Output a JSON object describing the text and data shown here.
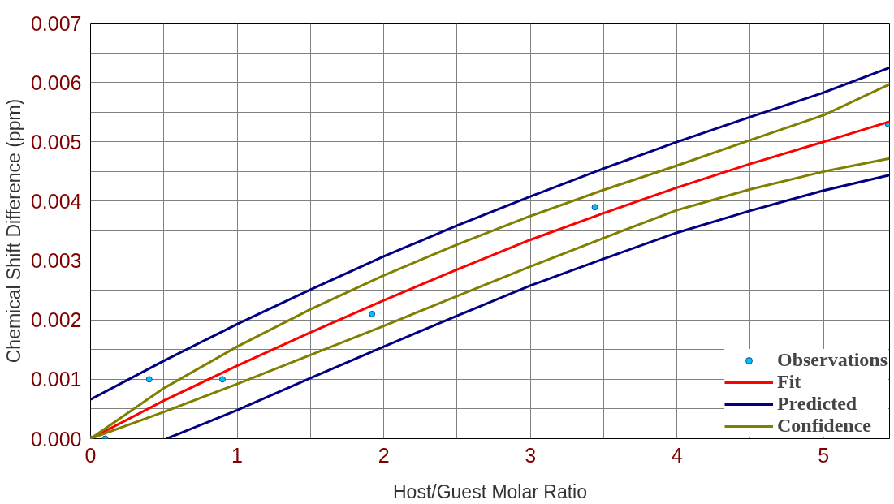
{
  "chart_data": {
    "type": "line",
    "xlabel": "Host/Guest Molar Ratio",
    "ylabel": "Chemical Shift Difference (ppm)",
    "xlim": [
      0,
      5.45
    ],
    "ylim": [
      0,
      0.007
    ],
    "xticks": [
      0,
      {
        "value": 0.5,
        "label": null
      },
      1,
      {
        "value": 1.5,
        "label": null
      },
      2,
      {
        "value": 2.5,
        "label": null
      },
      3,
      {
        "value": 3.5,
        "label": null
      },
      4,
      {
        "value": 4.5,
        "label": null
      },
      5
    ],
    "yticks": [
      {
        "value": 0,
        "label": "0.000"
      },
      {
        "value": 0.0005,
        "label": null
      },
      {
        "value": 0.001,
        "label": "0.001"
      },
      {
        "value": 0.0015,
        "label": null
      },
      {
        "value": 0.002,
        "label": "0.002"
      },
      {
        "value": 0.0025,
        "label": null
      },
      {
        "value": 0.003,
        "label": "0.003"
      },
      {
        "value": 0.0035,
        "label": null
      },
      {
        "value": 0.004,
        "label": "0.004"
      },
      {
        "value": 0.0045,
        "label": null
      },
      {
        "value": 0.005,
        "label": "0.005"
      },
      {
        "value": 0.0055,
        "label": null
      },
      {
        "value": 0.006,
        "label": "0.006"
      },
      {
        "value": 0.0065,
        "label": null
      },
      {
        "value": 0.007,
        "label": "0.007"
      }
    ],
    "grid": true,
    "legend": "bottom right",
    "series": [
      {
        "name": "Observations",
        "type": "scatter",
        "marker": "circle",
        "color": "#00bfff",
        "x": [
          0,
          0.1,
          0.4,
          0.9,
          1.92,
          3.44,
          5.44
        ],
        "values": [
          0,
          0,
          0.001,
          0.001,
          0.0021,
          0.0039,
          0.0053
        ]
      },
      {
        "name": "Fit",
        "color": "#ff0000",
        "x": [
          0,
          0.5,
          1,
          1.5,
          2,
          2.5,
          3,
          3.5,
          4,
          4.5,
          5,
          5.45
        ],
        "values": [
          0,
          0.00064,
          0.00123,
          0.00179,
          0.00233,
          0.00285,
          0.00335,
          0.0038,
          0.00423,
          0.00463,
          0.005,
          0.00534
        ]
      },
      {
        "name": "Predicted",
        "color": "#000080",
        "x": [
          0,
          0.5,
          1,
          1.5,
          2,
          2.5,
          3,
          3.5,
          4,
          4.5,
          5,
          5.45
        ],
        "values": [
          0.00066,
          0.00131,
          0.00193,
          0.00251,
          0.00307,
          0.00359,
          0.00408,
          0.00455,
          0.005,
          0.00542,
          0.00583,
          0.00625
        ]
      },
      {
        "color": "#000080",
        "x": [
          0.52,
          1,
          1.5,
          2,
          2.5,
          3,
          3.5,
          4,
          4.5,
          5,
          5.45
        ],
        "values": [
          0,
          0.00048,
          0.00102,
          0.00155,
          0.00207,
          0.00258,
          0.00303,
          0.00347,
          0.00384,
          0.00418,
          0.00444
        ]
      },
      {
        "name": "Confidence",
        "color": "#808000",
        "x": [
          0,
          0.5,
          1,
          1.5,
          2,
          2.5,
          3,
          3.5,
          4,
          4.5,
          5,
          5.45
        ],
        "values": [
          0,
          0.00085,
          0.00155,
          0.00218,
          0.00275,
          0.00327,
          0.00375,
          0.00419,
          0.0046,
          0.00503,
          0.00545,
          0.00597
        ]
      },
      {
        "color": "#808000",
        "x": [
          0,
          0.5,
          1,
          1.5,
          2,
          2.5,
          3,
          3.5,
          4,
          4.5,
          5,
          5.45
        ],
        "values": [
          0,
          0.00045,
          0.00092,
          0.00141,
          0.0019,
          0.0024,
          0.0029,
          0.00338,
          0.00385,
          0.0042,
          0.0045,
          0.00472
        ]
      }
    ]
  }
}
